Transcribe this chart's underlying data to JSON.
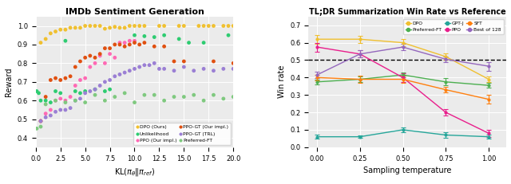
{
  "left": {
    "title": "IMDb Sentiment Generation",
    "ylabel": "Reward",
    "xlim": [
      0,
      20
    ],
    "ylim": [
      0.35,
      1.05
    ],
    "series": {
      "DPO (Ours)": {
        "color": "#f0c030",
        "x": [
          0.5,
          1.0,
          1.5,
          2.0,
          2.5,
          3.0,
          3.5,
          4.0,
          4.5,
          5.0,
          5.5,
          6.0,
          6.5,
          7.0,
          7.5,
          8.0,
          8.5,
          9.0,
          9.5,
          10.0,
          10.5,
          11.0,
          12.5,
          13.0,
          14.5,
          15.0,
          16.5,
          17.0,
          17.5,
          18.0,
          19.0,
          19.5,
          20.0
        ],
        "y": [
          0.91,
          0.93,
          0.96,
          0.97,
          0.98,
          0.98,
          0.99,
          0.99,
          0.99,
          1.0,
          1.0,
          1.0,
          1.0,
          0.985,
          0.99,
          0.995,
          0.99,
          0.99,
          1.0,
          1.0,
          1.0,
          1.0,
          1.0,
          1.0,
          1.0,
          1.0,
          1.0,
          1.0,
          1.0,
          1.0,
          1.0,
          1.0,
          1.0
        ]
      },
      "Unlikelihood": {
        "color": "#2ecc71",
        "x": [
          0.1,
          0.3,
          0.5,
          1.0,
          1.5,
          2.0,
          2.5,
          3.0,
          4.0,
          4.5,
          5.0,
          6.0,
          7.0,
          7.5,
          10.0,
          11.0,
          12.0,
          13.0,
          14.5,
          15.5,
          17.0,
          19.5
        ],
        "y": [
          0.65,
          0.64,
          0.6,
          0.6,
          0.59,
          0.65,
          0.64,
          0.92,
          0.65,
          0.64,
          0.65,
          0.66,
          0.65,
          0.66,
          0.95,
          0.945,
          0.94,
          0.95,
          0.93,
          0.91,
          0.91,
          0.95
        ]
      },
      "PPO (Our impl.)": {
        "color": "#ff69b4",
        "x": [
          0.5,
          1.0,
          1.5,
          2.0,
          2.5,
          3.0,
          3.5,
          4.0,
          4.5,
          5.0,
          5.5,
          6.0,
          6.5,
          7.0,
          7.5,
          8.0,
          8.5,
          9.0,
          9.5,
          10.0
        ],
        "y": [
          0.49,
          0.53,
          0.55,
          0.6,
          0.61,
          0.6,
          0.62,
          0.68,
          0.71,
          0.72,
          0.78,
          0.8,
          0.84,
          0.8,
          0.85,
          0.83,
          0.91,
          0.91,
          0.92,
          0.92
        ]
      },
      "PPO-GT (Our impl.)": {
        "color": "#e05010",
        "x": [
          0.5,
          1.0,
          1.5,
          2.0,
          2.5,
          3.0,
          3.5,
          4.0,
          4.5,
          5.0,
          5.5,
          6.0,
          6.5,
          7.0,
          7.5,
          8.0,
          8.5,
          9.0,
          9.5,
          10.0,
          10.5,
          11.0,
          12.0,
          13.0,
          14.0,
          15.0,
          18.0,
          20.0
        ],
        "y": [
          0.49,
          0.62,
          0.71,
          0.72,
          0.71,
          0.72,
          0.73,
          0.78,
          0.81,
          0.83,
          0.84,
          0.83,
          0.85,
          0.88,
          0.88,
          0.9,
          0.9,
          0.89,
          0.9,
          0.91,
          0.9,
          0.91,
          0.89,
          0.89,
          0.81,
          0.81,
          0.81,
          0.8
        ]
      },
      "PPO-GT (TRL)": {
        "color": "#9b7fd4",
        "x": [
          0.5,
          1.0,
          1.5,
          2.0,
          2.5,
          3.0,
          3.5,
          4.0,
          4.5,
          5.0,
          5.5,
          6.0,
          6.5,
          7.0,
          7.5,
          8.0,
          8.5,
          9.0,
          9.5,
          10.0,
          10.5,
          11.0,
          11.5,
          12.0,
          12.5,
          13.0,
          14.0,
          15.0,
          16.0,
          17.0,
          18.0,
          19.0,
          20.0
        ],
        "y": [
          0.49,
          0.51,
          0.52,
          0.54,
          0.55,
          0.55,
          0.56,
          0.6,
          0.61,
          0.64,
          0.65,
          0.66,
          0.68,
          0.7,
          0.71,
          0.73,
          0.74,
          0.75,
          0.76,
          0.77,
          0.78,
          0.79,
          0.79,
          0.8,
          0.77,
          0.77,
          0.76,
          0.78,
          0.76,
          0.77,
          0.76,
          0.77,
          0.77
        ]
      },
      "Preferred-FT": {
        "color": "#7fc97f",
        "x": [
          0.1,
          0.5,
          1.0,
          2.0,
          3.0,
          4.0,
          5.0,
          6.0,
          7.0,
          8.0,
          9.0,
          10.0,
          11.0,
          12.0,
          13.0,
          14.0,
          15.0,
          16.0,
          17.0,
          18.0,
          19.0,
          20.0
        ],
        "y": [
          0.45,
          0.46,
          0.58,
          0.6,
          0.59,
          0.6,
          0.59,
          0.63,
          0.6,
          0.62,
          0.64,
          0.59,
          0.63,
          0.63,
          0.6,
          0.62,
          0.62,
          0.63,
          0.6,
          0.63,
          0.61,
          0.62
        ]
      }
    },
    "legend": [
      {
        "label": "DPO (Ours)",
        "color": "#f0c030"
      },
      {
        "label": "Unlikelihood",
        "color": "#2ecc71"
      },
      {
        "label": "PPO (Our impl.)",
        "color": "#ff69b4"
      },
      {
        "label": "PPO-GT (Our impl.)",
        "color": "#e05010"
      },
      {
        "label": "PPO-GT (TRL)",
        "color": "#9b7fd4"
      },
      {
        "label": "Preferred-FT",
        "color": "#7fc97f"
      }
    ]
  },
  "right": {
    "title": "TL;DR Summarization Win Rate vs Reference",
    "xlabel": "Sampling temperature",
    "ylabel": "Win rate",
    "xlim": [
      -0.05,
      1.1
    ],
    "ylim": [
      0.0,
      0.75
    ],
    "dashed_line_y": 0.5,
    "xticks": [
      0.0,
      0.25,
      0.5,
      0.75,
      1.0
    ],
    "series": {
      "DPO": {
        "color": "#f0c030",
        "x": [
          0.0,
          0.25,
          0.5,
          0.75,
          1.0
        ],
        "y": [
          0.62,
          0.62,
          0.6,
          0.52,
          0.39
        ],
        "yerr": [
          0.025,
          0.02,
          0.02,
          0.02,
          0.015
        ]
      },
      "PPO": {
        "color": "#e91e8c",
        "x": [
          0.0,
          0.25,
          0.5,
          0.75,
          1.0
        ],
        "y": [
          0.575,
          0.535,
          0.4,
          0.2,
          0.08
        ],
        "yerr": [
          0.025,
          0.02,
          0.025,
          0.02,
          0.02
        ]
      },
      "Preferred-FT": {
        "color": "#4caf50",
        "x": [
          0.0,
          0.25,
          0.5,
          0.75,
          1.0
        ],
        "y": [
          0.375,
          0.39,
          0.415,
          0.375,
          0.355
        ],
        "yerr": [
          0.015,
          0.015,
          0.015,
          0.02,
          0.015
        ]
      },
      "SFT": {
        "color": "#ff7f0e",
        "x": [
          0.0,
          0.25,
          0.5,
          0.75,
          1.0
        ],
        "y": [
          0.4,
          0.39,
          0.39,
          0.33,
          0.275
        ],
        "yerr": [
          0.015,
          0.02,
          0.02,
          0.015,
          0.025
        ]
      },
      "GPT-J": {
        "color": "#26a69a",
        "x": [
          0.0,
          0.25,
          0.5,
          0.75,
          1.0
        ],
        "y": [
          0.06,
          0.06,
          0.1,
          0.07,
          0.06
        ],
        "yerr": [
          0.01,
          0.008,
          0.015,
          0.015,
          0.01
        ]
      },
      "Best of 128": {
        "color": "#9467bd",
        "x": [
          0.0,
          0.25,
          0.5,
          0.75,
          1.0
        ],
        "y": [
          0.415,
          0.535,
          0.575,
          0.505,
          0.465
        ],
        "yerr": [
          0.02,
          0.02,
          0.02,
          0.015,
          0.025
        ]
      }
    },
    "legend_order": [
      "DPO",
      "Preferred-FT",
      "GPT-J",
      "PPO",
      "SFT",
      "Best of 128"
    ]
  }
}
